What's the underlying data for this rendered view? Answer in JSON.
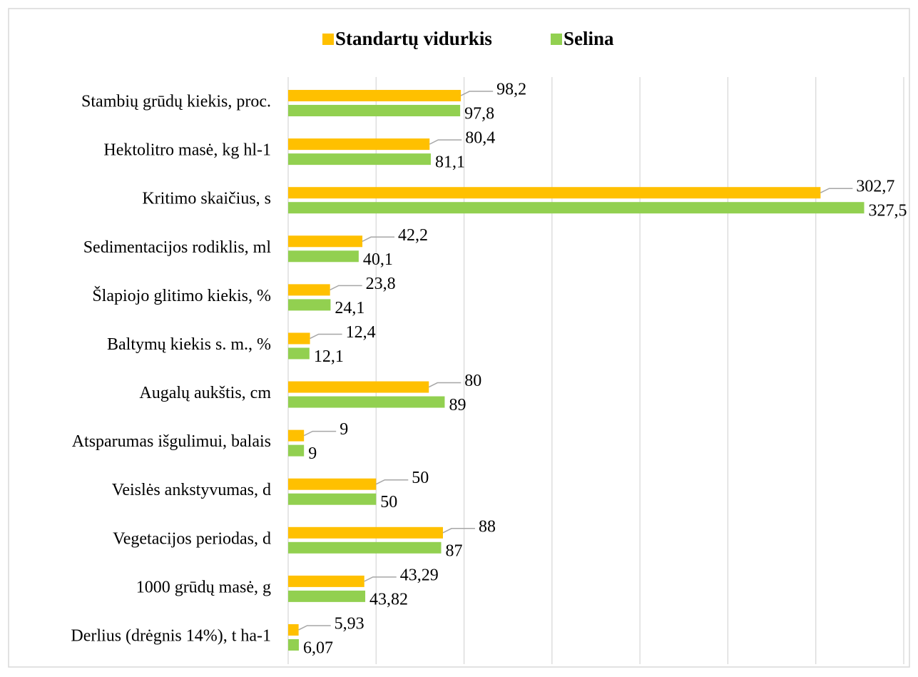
{
  "chart_data": {
    "type": "hbar",
    "categories": [
      "Stambių grūdų kiekis, proc.",
      "Hektolitro masė, kg hl-1",
      "Kritimo skaičius, s",
      "Sedimentacijos rodiklis, ml",
      "Šlapiojo glitimo kiekis, %",
      "Baltymų kiekis s. m., %",
      "Augalų aukštis, cm",
      "Atsparumas išgulimui, balais",
      "Veislės ankstyvumas, d",
      "Vegetacijos periodas, d",
      "1000 grūdų masė, g",
      "Derlius (drėgnis 14%), t ha-1"
    ],
    "series": [
      {
        "name": "Standartų vidurkis",
        "color": "#FFC000",
        "values": [
          98.2,
          80.4,
          302.7,
          42.2,
          23.8,
          12.4,
          80,
          9,
          50,
          88,
          43.29,
          5.93
        ],
        "value_labels": [
          "98,2",
          "80,4",
          "302,7",
          "42,2",
          "23,8",
          "12,4",
          "80",
          "9",
          "50",
          "88",
          "43,29",
          "5,93"
        ]
      },
      {
        "name": "Selina",
        "color": "#92D050",
        "values": [
          97.8,
          81.1,
          327.5,
          40.1,
          24.1,
          12.1,
          89,
          9,
          50,
          87,
          43.82,
          6.07
        ],
        "value_labels": [
          "97,8",
          "81,1",
          "327,5",
          "40,1",
          "24,1",
          "12,1",
          "89",
          "9",
          "50",
          "87",
          "43,82",
          "6,07"
        ]
      }
    ],
    "xlim": [
      0,
      350
    ],
    "xticks": [
      0,
      50,
      100,
      150,
      200,
      250,
      300,
      350
    ],
    "grid": true
  }
}
